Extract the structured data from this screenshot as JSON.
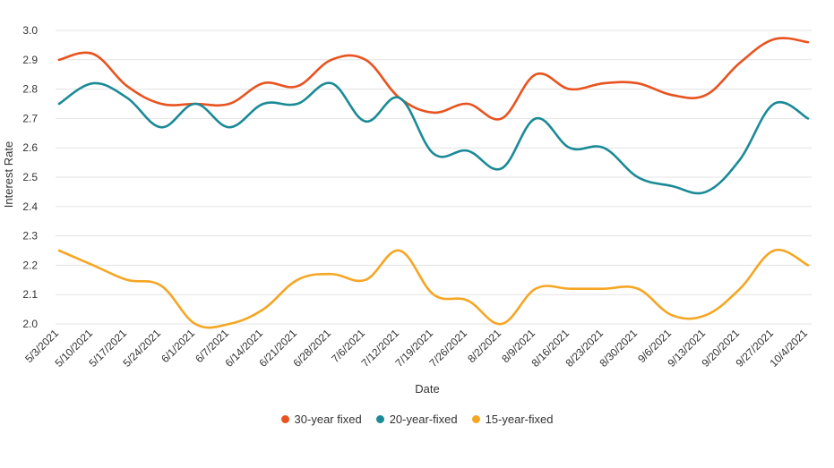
{
  "chart_data": {
    "type": "line",
    "xlabel": "Date",
    "ylabel": "Interest Rate",
    "ylim": [
      2.0,
      3.0
    ],
    "yticks": [
      "2.0",
      "2.1",
      "2.2",
      "2.3",
      "2.4",
      "2.5",
      "2.6",
      "2.7",
      "2.8",
      "2.9",
      "3.0"
    ],
    "grid": true,
    "legend_position": "bottom",
    "categories": [
      "5/3/2021",
      "5/10/2021",
      "5/17/2021",
      "5/24/2021",
      "6/1/2021",
      "6/7/2021",
      "6/14/2021",
      "6/21/2021",
      "6/28/2021",
      "7/6/2021",
      "7/12/2021",
      "7/19/2021",
      "7/26/2021",
      "8/2/2021",
      "8/9/2021",
      "8/16/2021",
      "8/23/2021",
      "8/30/2021",
      "9/6/2021",
      "9/13/2021",
      "9/20/2021",
      "9/27/2021",
      "10/4/2021"
    ],
    "series": [
      {
        "name": "30-year fixed",
        "color": "#E8531F",
        "values": [
          2.9,
          2.92,
          2.81,
          2.75,
          2.75,
          2.75,
          2.82,
          2.81,
          2.9,
          2.9,
          2.77,
          2.72,
          2.75,
          2.7,
          2.85,
          2.8,
          2.82,
          2.82,
          2.78,
          2.78,
          2.89,
          2.97,
          2.96
        ]
      },
      {
        "name": "20-year-fixed",
        "color": "#1A8A96",
        "values": [
          2.75,
          2.82,
          2.77,
          2.67,
          2.75,
          2.67,
          2.75,
          2.75,
          2.82,
          2.69,
          2.77,
          2.58,
          2.59,
          2.53,
          2.7,
          2.6,
          2.6,
          2.5,
          2.47,
          2.45,
          2.56,
          2.75,
          2.7
        ]
      },
      {
        "name": "15-year-fixed",
        "color": "#F5A623",
        "values": [
          2.25,
          2.2,
          2.15,
          2.13,
          2.0,
          2.0,
          2.05,
          2.15,
          2.17,
          2.15,
          2.25,
          2.1,
          2.08,
          2.0,
          2.12,
          2.12,
          2.12,
          2.12,
          2.03,
          2.03,
          2.12,
          2.25,
          2.2
        ]
      }
    ]
  }
}
